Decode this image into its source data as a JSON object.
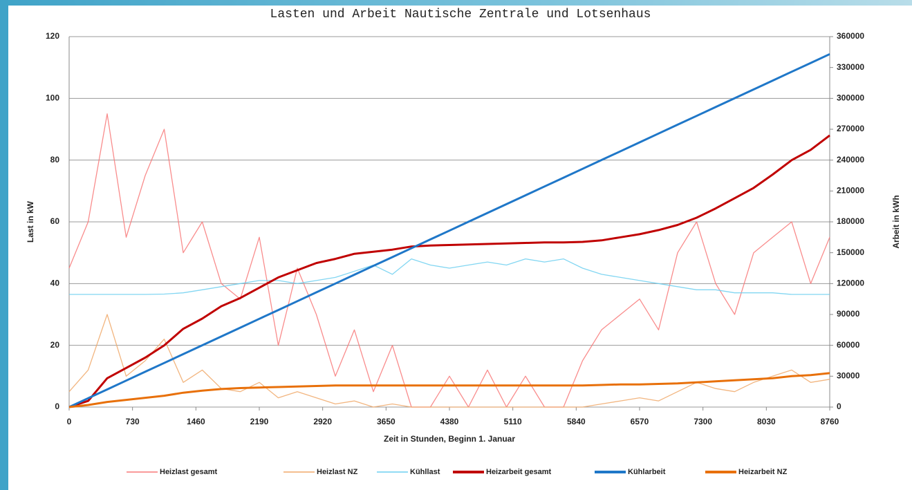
{
  "chart_data": {
    "type": "line",
    "title": "Lasten und Arbeit Nautische Zentrale und Lotsenhaus",
    "x_label": "Zeit in Stunden, Beginn 1. Januar",
    "y_label": "Last in kW",
    "y2_label": "Arbeit in kWh",
    "x": [
      0,
      219,
      438,
      657,
      876,
      1095,
      1314,
      1533,
      1752,
      1971,
      2190,
      2409,
      2628,
      2847,
      3066,
      3285,
      3504,
      3723,
      3942,
      4161,
      4380,
      4599,
      4818,
      5037,
      5256,
      5475,
      5694,
      5913,
      6132,
      6351,
      6570,
      6789,
      7008,
      7227,
      7446,
      7665,
      7884,
      8103,
      8322,
      8541,
      8760
    ],
    "xlim": [
      0,
      8760
    ],
    "xticks": [
      0,
      730,
      1460,
      2190,
      2920,
      3650,
      4380,
      5110,
      5840,
      6570,
      7300,
      8030,
      8760
    ],
    "ylim": [
      0,
      120
    ],
    "yticks": [
      0,
      20,
      40,
      60,
      80,
      100,
      120
    ],
    "y2lim": [
      0,
      360000
    ],
    "y2ticks": [
      0,
      30000,
      60000,
      90000,
      120000,
      150000,
      180000,
      210000,
      240000,
      270000,
      300000,
      330000,
      360000
    ],
    "grid": true,
    "legend": "bottom",
    "series": [
      {
        "name": "Heizlast gesamt",
        "color": "#f87878",
        "values": [
          45,
          60,
          95,
          55,
          75,
          90,
          50,
          60,
          40,
          35,
          55,
          20,
          45,
          30,
          10,
          25,
          5,
          20,
          0,
          0,
          10,
          0,
          12,
          0,
          10,
          0,
          0,
          15,
          25,
          30,
          35,
          25,
          50,
          60,
          40,
          30,
          50,
          55,
          60,
          40,
          55
        ]
      },
      {
        "name": "Heizlast NZ",
        "color": "#f0a868",
        "values": [
          5,
          12,
          30,
          10,
          15,
          22,
          8,
          12,
          6,
          5,
          8,
          3,
          5,
          3,
          1,
          2,
          0,
          1,
          0,
          0,
          0,
          0,
          0,
          0,
          0,
          0,
          0,
          0,
          1,
          2,
          3,
          2,
          5,
          8,
          6,
          5,
          8,
          10,
          12,
          8,
          9
        ]
      },
      {
        "name": "Kühllast",
        "color": "#6ccff0",
        "values": [
          36.5,
          36.5,
          36.5,
          36.5,
          36.5,
          36.6,
          37,
          38,
          39,
          40,
          41,
          41,
          40,
          41,
          42,
          44,
          46,
          43,
          48,
          46,
          45,
          46,
          47,
          46,
          48,
          47,
          48,
          45,
          43,
          42,
          41,
          40,
          39,
          38,
          38,
          37,
          37,
          37,
          36.5,
          36.5,
          36.5
        ]
      },
      {
        "name": "Heizarbeit gesamt",
        "color": "#c00000",
        "axis": "y2",
        "values": [
          0,
          6000,
          28000,
          38000,
          48000,
          60000,
          76000,
          86000,
          98000,
          106000,
          116000,
          126000,
          133000,
          140000,
          144000,
          149000,
          151000,
          153000,
          156000,
          157000,
          157500,
          158000,
          158500,
          159000,
          159500,
          160000,
          160000,
          160500,
          162000,
          165000,
          168000,
          172000,
          177000,
          184000,
          193000,
          203000,
          213000,
          226000,
          240000,
          250000,
          264000
        ]
      },
      {
        "name": "Kühlarbeit",
        "color": "#1f77c8",
        "axis": "y2",
        "values": [
          0,
          8575,
          17150,
          25725,
          34300,
          42875,
          51450,
          60025,
          68600,
          77175,
          85750,
          94325,
          102900,
          111475,
          120050,
          128625,
          137200,
          145775,
          154350,
          162925,
          171500,
          180075,
          188650,
          197225,
          205800,
          214375,
          222950,
          231525,
          240100,
          248675,
          257250,
          265825,
          274400,
          282975,
          291550,
          300125,
          308700,
          317275,
          325850,
          334425,
          343000
        ]
      },
      {
        "name": "Heizarbeit NZ",
        "color": "#e8700a",
        "axis": "y2",
        "values": [
          0,
          2000,
          5000,
          7000,
          9000,
          11000,
          14000,
          16000,
          17500,
          18500,
          19000,
          19500,
          20000,
          20500,
          21000,
          21000,
          21000,
          21000,
          21000,
          21000,
          21000,
          21000,
          21000,
          21000,
          21000,
          21000,
          21000,
          21000,
          21500,
          22000,
          22000,
          22500,
          23000,
          24000,
          25000,
          26000,
          27000,
          28000,
          30000,
          31000,
          33000
        ]
      }
    ]
  }
}
